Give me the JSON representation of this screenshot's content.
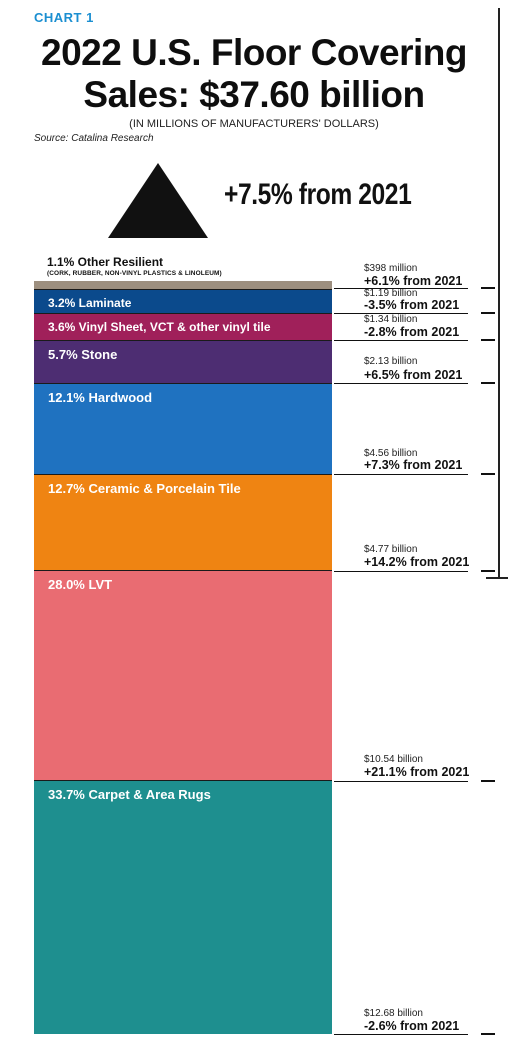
{
  "header": {
    "kicker": "CHART 1",
    "title_line1": "2022 U.S. Floor Covering",
    "title_line2": "Sales: $37.60 billion",
    "subtitle": "(IN MILLIONS OF MANUFACTURERS' DOLLARS)",
    "source": "Source: Catalina Research",
    "growth": "+7.5% from 2021"
  },
  "colors": {
    "kicker": "#1b8fd1",
    "other_resilient": "#9d8f7f",
    "laminate": "#0b4a8c",
    "vinyl_sheet": "#a0205a",
    "stone": "#4d2d72",
    "hardwood": "#1f72c0",
    "ceramic": "#ef8412",
    "lvt": "#e96c72",
    "carpet": "#1e8f8f"
  },
  "chart_data": {
    "type": "bar",
    "title": "2022 U.S. Floor Covering Sales: $37.60 billion",
    "stacked": true,
    "categories": [
      "Other Resilient",
      "Laminate",
      "Vinyl Sheet, VCT & other vinyl tile",
      "Stone",
      "Hardwood",
      "Ceramic & Porcelain Tile",
      "LVT",
      "Carpet & Area Rugs"
    ],
    "share_pct": [
      1.1,
      3.2,
      3.6,
      5.7,
      12.1,
      12.7,
      28.0,
      33.7
    ],
    "sales_billion": [
      0.398,
      1.19,
      1.34,
      2.13,
      4.56,
      4.77,
      10.54,
      12.68
    ],
    "change_pct_from_2021": [
      6.1,
      -3.5,
      -2.8,
      6.5,
      7.3,
      14.2,
      21.1,
      -2.6
    ],
    "segments": [
      {
        "key": "other_resilient",
        "label": "1.1% Other Resilient",
        "sublabel": "(CORK, RUBBER, NON-VINYL PLASTICS & LINOLEUM)",
        "value": "$398 million",
        "change": "+6.1% from 2021"
      },
      {
        "key": "laminate",
        "label": "3.2% Laminate",
        "value": "$1.19 billion",
        "change": "-3.5% from 2021"
      },
      {
        "key": "vinyl_sheet",
        "label": "3.6% Vinyl Sheet, VCT & other vinyl tile",
        "value": "$1.34 billion",
        "change": "-2.8% from 2021"
      },
      {
        "key": "stone",
        "label": "5.7% Stone",
        "value": "$2.13 billion",
        "change": "+6.5% from 2021"
      },
      {
        "key": "hardwood",
        "label": "12.1% Hardwood",
        "value": "$4.56 billion",
        "change": "+7.3% from 2021"
      },
      {
        "key": "ceramic",
        "label": "12.7% Ceramic & Porcelain Tile",
        "value": "$4.77 billion",
        "change": "+14.2% from 2021"
      },
      {
        "key": "lvt",
        "label": "28.0% LVT",
        "value": "$10.54 billion",
        "change": "+21.1% from 2021"
      },
      {
        "key": "carpet",
        "label": "33.7% Carpet & Area Rugs",
        "value": "$12.68 billion",
        "change": "-2.6% from 2021"
      }
    ]
  }
}
